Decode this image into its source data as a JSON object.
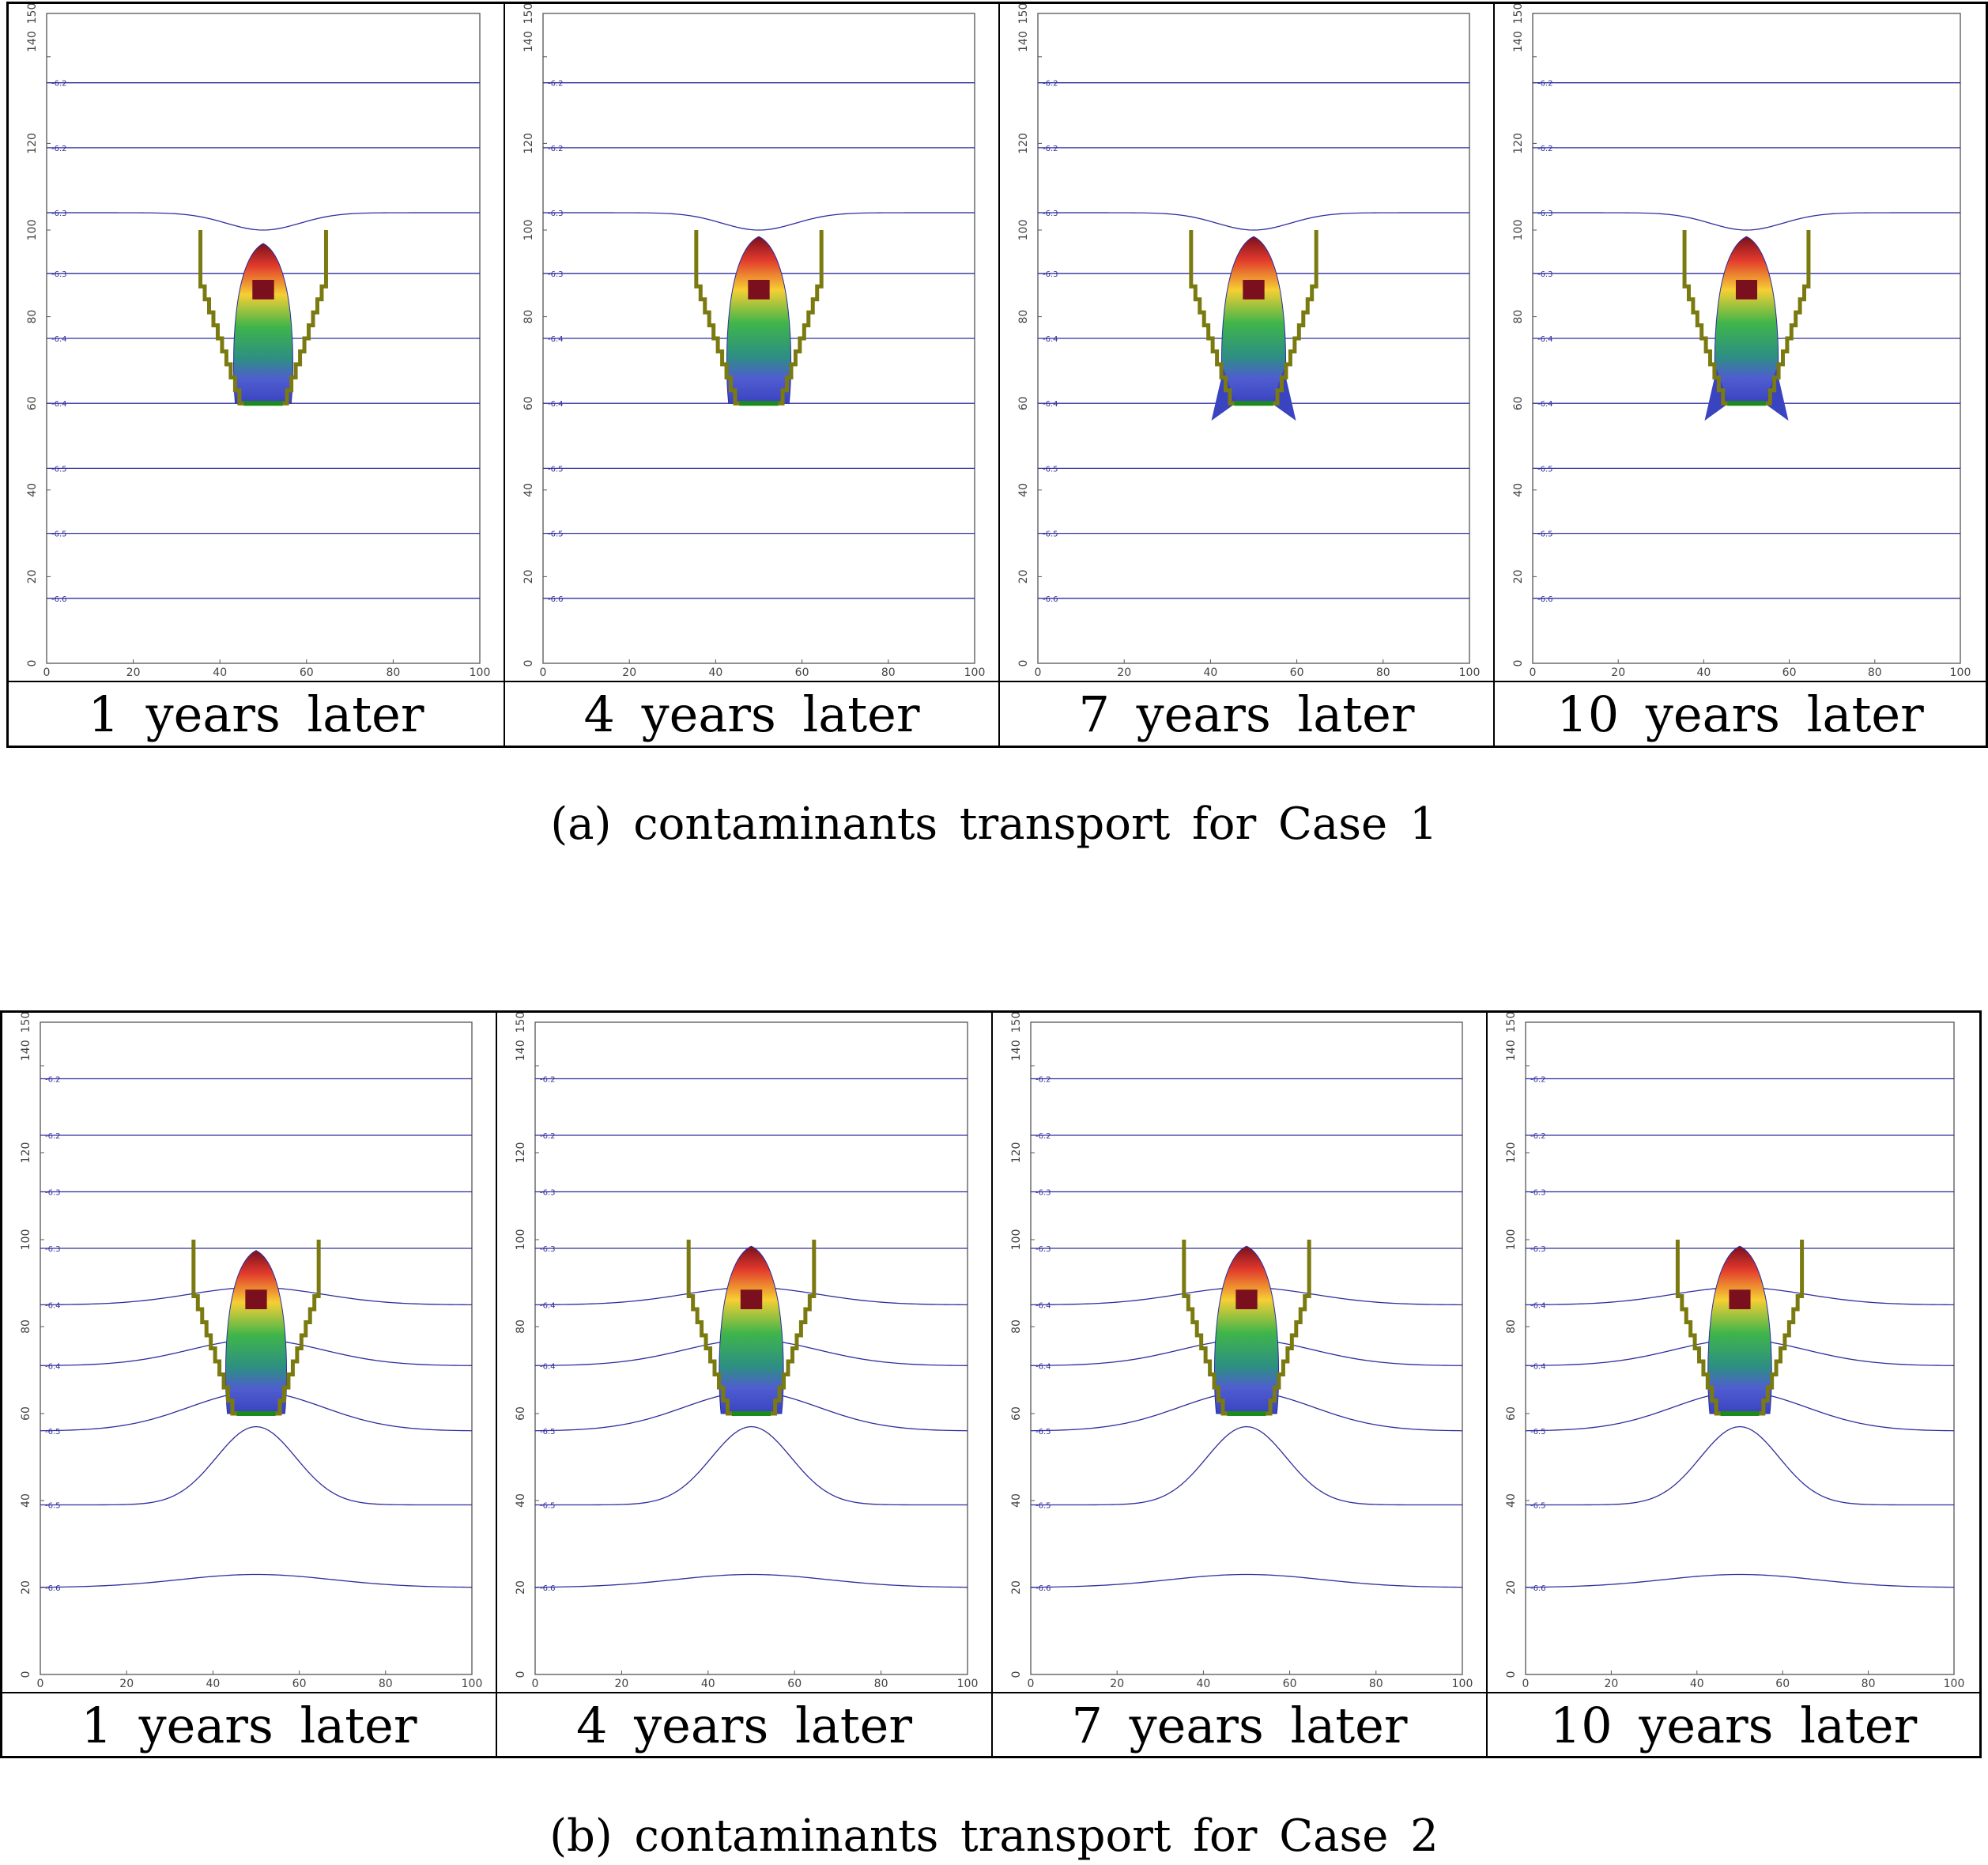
{
  "panels": [
    {
      "caption": "(a) contaminants transport for Case 1",
      "cells": [
        {
          "label": "1 years later",
          "plume_scale": 0.92,
          "side_lobes": false
        },
        {
          "label": "4 years later",
          "plume_scale": 1.0,
          "side_lobes": false
        },
        {
          "label": "7 years later",
          "plume_scale": 1.0,
          "side_lobes": true
        },
        {
          "label": "10 years later",
          "plume_scale": 1.0,
          "side_lobes": true
        }
      ],
      "contours": [
        {
          "y": 134,
          "label": "-6.2"
        },
        {
          "y": 119,
          "label": "-6.2"
        },
        {
          "y": 104,
          "label": "-6.3",
          "dip": true
        },
        {
          "y": 90,
          "label": "-6.3"
        },
        {
          "y": 75,
          "label": "-6.4"
        },
        {
          "y": 60,
          "label": "-6.4"
        },
        {
          "y": 45,
          "label": "-6.5"
        },
        {
          "y": 30,
          "label": "-6.5"
        },
        {
          "y": 15,
          "label": "-6.6"
        }
      ]
    },
    {
      "caption": "(b) contaminants transport for Case 2",
      "cells": [
        {
          "label": "1 years later",
          "plume_scale": 0.95,
          "side_lobes": false
        },
        {
          "label": "4 years later",
          "plume_scale": 1.0,
          "side_lobes": false
        },
        {
          "label": "7 years later",
          "plume_scale": 1.0,
          "side_lobes": false
        },
        {
          "label": "10 years later",
          "plume_scale": 1.0,
          "side_lobes": false
        }
      ],
      "contours": [
        {
          "y": 137,
          "label": "-6.2"
        },
        {
          "y": 124,
          "label": "-6.2"
        },
        {
          "y": 111,
          "label": "-6.3"
        },
        {
          "y": 98,
          "label": "-6.3"
        },
        {
          "y": 85,
          "label": "-6.4",
          "bend": 4
        },
        {
          "y": 71,
          "label": "-6.4",
          "bend": 6
        },
        {
          "y": 56,
          "label": "-6.5",
          "bend": 9
        },
        {
          "y": 39,
          "label": "-6.5",
          "bump": true
        },
        {
          "y": 20,
          "label": "-6.6",
          "hump": true
        }
      ]
    }
  ],
  "axes": {
    "x_ticks": [
      "0",
      "20",
      "40",
      "60",
      "80",
      "100"
    ],
    "y_ticks": [
      "0",
      "20",
      "40",
      "60",
      "80",
      "100",
      "120",
      "140",
      "150"
    ],
    "xlim": [
      0,
      100
    ],
    "ylim": [
      0,
      150
    ]
  },
  "colors": {
    "contour": "#2e2e9e",
    "wall": "#7a7a10",
    "base": "#1d8a1d",
    "source": "#7a0f1e"
  }
}
